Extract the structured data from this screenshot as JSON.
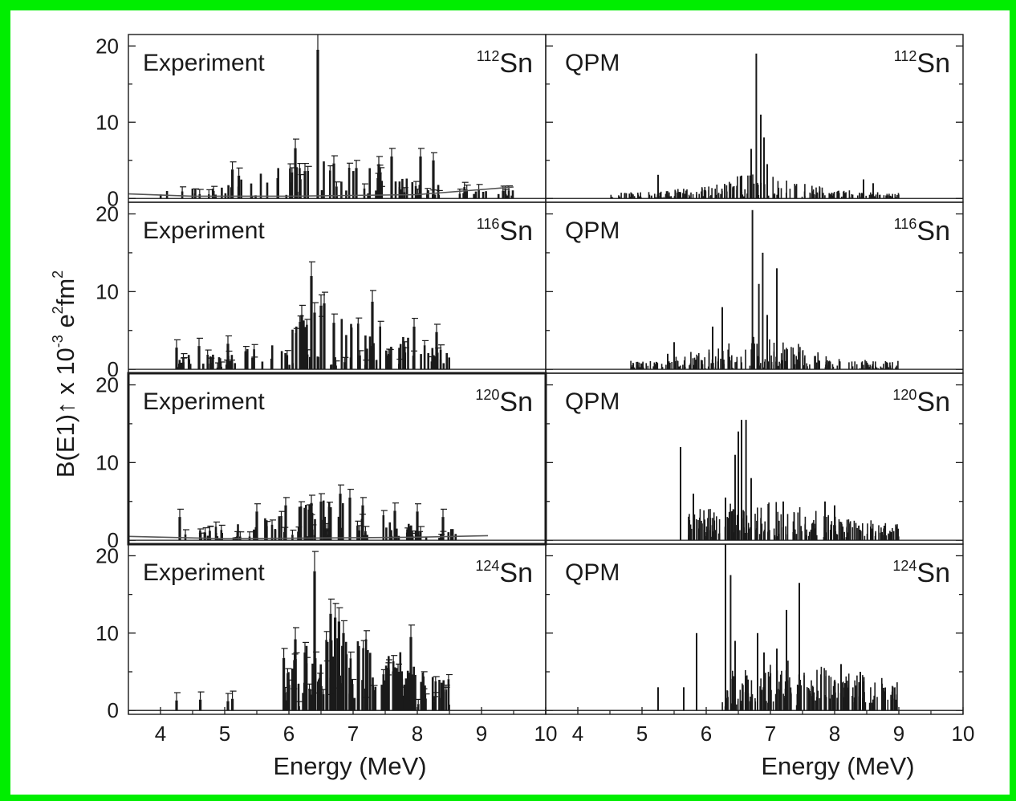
{
  "frame_color": "#00ee00",
  "ink_color": "#1a1a1a",
  "chart_data": {
    "type": "bar",
    "layout": "4 rows x 2 columns of stick spectra",
    "xlabel": "Energy (MeV)",
    "ylabel": "B(E1)↑ x 10⁻³ e²fm²",
    "ylabel_parts": {
      "pre": "B(E1)",
      "arrow": "↑",
      "mid": " x 10",
      "exp1": "-3",
      "mid2": " e",
      "exp2": "2",
      "post": "fm",
      "exp3": "2"
    },
    "x_ticks_left": [
      "4",
      "5",
      "6",
      "7",
      "8",
      "9",
      "10"
    ],
    "x_ticks_right": [
      "4",
      "5",
      "6",
      "7",
      "8",
      "9",
      "10"
    ],
    "y_ticks": [
      "0",
      "10",
      "20"
    ],
    "xlim": [
      3.5,
      10
    ],
    "ylim": [
      -0.5,
      21.5
    ],
    "grid": false,
    "panels": [
      {
        "id": "exp-112",
        "row": 0,
        "col": 0,
        "label": "Experiment",
        "mass": "112",
        "element": "Sn",
        "seed": 112,
        "range": [
          4.0,
          9.5
        ],
        "n": 95,
        "peak_center": 6.6,
        "peak_width": 1.3,
        "base": 1.0,
        "amp": 2.8,
        "peaks": [
          [
            6.45,
            19.5
          ],
          [
            6.1,
            6.6
          ],
          [
            6.25,
            3.6
          ],
          [
            5.12,
            3.8
          ],
          [
            5.22,
            3.0
          ],
          [
            7.6,
            5.5
          ],
          [
            8.05,
            5.5
          ],
          [
            8.25,
            5.0
          ],
          [
            7.4,
            4.5
          ],
          [
            7.05,
            4.0
          ],
          [
            6.7,
            4.6
          ]
        ],
        "error_bars": true,
        "background_line": [
          [
            3.5,
            0.6
          ],
          [
            4.5,
            0.3
          ],
          [
            6.0,
            0.3
          ],
          [
            8.0,
            0.5
          ],
          [
            9.5,
            1.5
          ]
        ]
      },
      {
        "id": "qpm-112",
        "row": 0,
        "col": 1,
        "label": "QPM",
        "mass": "112",
        "element": "Sn",
        "seed": 1121,
        "range": [
          4.5,
          9.0
        ],
        "n": 240,
        "peak_center": 6.8,
        "peak_width": 1.0,
        "base": 0.6,
        "amp": 1.6,
        "peaks": [
          [
            6.78,
            19.0
          ],
          [
            6.85,
            11.0
          ],
          [
            6.9,
            8.0
          ],
          [
            6.7,
            6.5
          ],
          [
            6.55,
            3.0
          ],
          [
            5.25,
            3.1
          ],
          [
            8.45,
            2.5
          ],
          [
            8.6,
            2.0
          ],
          [
            6.95,
            4.5
          ]
        ],
        "error_bars": false
      },
      {
        "id": "exp-116",
        "row": 1,
        "col": 0,
        "label": "Experiment",
        "mass": "116",
        "element": "Sn",
        "seed": 116,
        "range": [
          4.2,
          8.5
        ],
        "n": 110,
        "peak_center": 6.8,
        "peak_width": 1.3,
        "base": 1.4,
        "amp": 3.6,
        "peaks": [
          [
            6.35,
            12.0
          ],
          [
            6.5,
            8.2
          ],
          [
            6.55,
            8.5
          ],
          [
            7.3,
            8.7
          ],
          [
            6.2,
            7.0
          ],
          [
            6.4,
            7.3
          ],
          [
            7.95,
            5.5
          ],
          [
            8.3,
            4.8
          ],
          [
            6.7,
            6.0
          ],
          [
            4.25,
            2.8
          ],
          [
            4.6,
            3.0
          ],
          [
            5.05,
            3.3
          ]
        ],
        "error_bars": true
      },
      {
        "id": "qpm-116",
        "row": 1,
        "col": 1,
        "label": "QPM",
        "mass": "116",
        "element": "Sn",
        "seed": 1161,
        "range": [
          4.8,
          9.0
        ],
        "n": 240,
        "peak_center": 6.8,
        "peak_width": 1.1,
        "base": 0.8,
        "amp": 2.0,
        "peaks": [
          [
            6.72,
            20.5
          ],
          [
            6.88,
            15.0
          ],
          [
            7.1,
            13.0
          ],
          [
            6.82,
            11.0
          ],
          [
            6.1,
            5.5
          ],
          [
            6.25,
            8.0
          ],
          [
            6.95,
            7.0
          ],
          [
            5.5,
            3.5
          ],
          [
            5.4,
            2.0
          ]
        ],
        "error_bars": false
      },
      {
        "id": "exp-120",
        "row": 2,
        "col": 0,
        "label": "Experiment",
        "mass": "120",
        "element": "Sn",
        "seed": 120,
        "range": [
          4.3,
          8.6
        ],
        "n": 110,
        "peak_center": 6.6,
        "peak_width": 1.2,
        "base": 1.0,
        "amp": 2.6,
        "peaks": [
          [
            6.8,
            6.0
          ],
          [
            6.5,
            5.0
          ],
          [
            6.95,
            5.5
          ],
          [
            5.95,
            4.5
          ],
          [
            5.5,
            3.7
          ],
          [
            7.65,
            3.8
          ],
          [
            8.0,
            3.7
          ],
          [
            7.15,
            4.5
          ],
          [
            6.35,
            4.8
          ],
          [
            4.3,
            3.0
          ],
          [
            8.4,
            3.0
          ]
        ],
        "error_bars": true,
        "background_line": [
          [
            3.5,
            0.5
          ],
          [
            5.0,
            0.2
          ],
          [
            6.5,
            0.3
          ],
          [
            8.0,
            0.4
          ],
          [
            9.1,
            0.6
          ]
        ]
      },
      {
        "id": "qpm-120",
        "row": 2,
        "col": 1,
        "label": "QPM",
        "mass": "120",
        "element": "Sn",
        "seed": 1201,
        "range": [
          5.7,
          9.0
        ],
        "n": 230,
        "peak_center": 6.8,
        "peak_width": 1.5,
        "base": 1.5,
        "amp": 2.2,
        "peaks": [
          [
            6.55,
            15.5
          ],
          [
            6.62,
            15.5
          ],
          [
            6.5,
            14.0
          ],
          [
            5.6,
            12.0
          ],
          [
            5.8,
            6.0
          ],
          [
            6.7,
            8.0
          ],
          [
            6.45,
            11.0
          ],
          [
            6.3,
            5.5
          ],
          [
            7.2,
            5.0
          ],
          [
            7.85,
            5.0
          ],
          [
            8.0,
            4.5
          ]
        ],
        "error_bars": false
      },
      {
        "id": "exp-124",
        "row": 3,
        "col": 0,
        "label": "Experiment",
        "mass": "124",
        "element": "Sn",
        "seed": 124,
        "range": [
          5.9,
          8.5
        ],
        "n": 120,
        "peak_center": 6.9,
        "peak_width": 1.2,
        "base": 2.5,
        "amp": 5.0,
        "peaks": [
          [
            6.4,
            18.0
          ],
          [
            6.65,
            12.5
          ],
          [
            6.72,
            12.0
          ],
          [
            6.78,
            11.5
          ],
          [
            6.85,
            10.0
          ],
          [
            7.9,
            9.5
          ],
          [
            5.92,
            6.8
          ],
          [
            6.1,
            9.2
          ],
          [
            6.25,
            7.5
          ],
          [
            7.55,
            5.5
          ],
          [
            7.7,
            5.0
          ],
          [
            4.25,
            1.3
          ],
          [
            4.62,
            1.4
          ],
          [
            5.05,
            1.2
          ],
          [
            5.12,
            1.5
          ]
        ],
        "error_bars": true
      },
      {
        "id": "qpm-124",
        "row": 3,
        "col": 1,
        "label": "QPM",
        "mass": "124",
        "element": "Sn",
        "seed": 1241,
        "range": [
          6.25,
          9.0
        ],
        "n": 220,
        "peak_center": 7.2,
        "peak_width": 1.6,
        "base": 2.0,
        "amp": 2.8,
        "peaks": [
          [
            6.3,
            21.5
          ],
          [
            6.38,
            17.5
          ],
          [
            7.45,
            16.5
          ],
          [
            5.85,
            10.0
          ],
          [
            7.25,
            13.0
          ],
          [
            6.8,
            10.0
          ],
          [
            6.45,
            9.0
          ],
          [
            7.1,
            8.0
          ],
          [
            8.1,
            6.0
          ],
          [
            8.4,
            5.0
          ],
          [
            5.65,
            3.0
          ],
          [
            5.25,
            3.0
          ],
          [
            6.9,
            7.5
          ]
        ],
        "error_bars": false
      }
    ]
  }
}
